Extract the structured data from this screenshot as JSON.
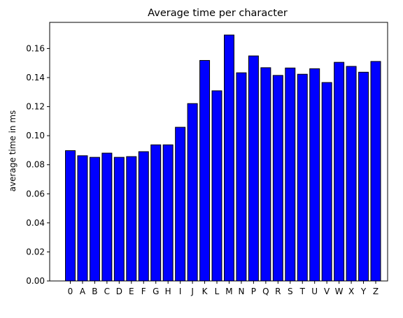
{
  "chart_data": {
    "type": "bar",
    "title": "Average time per character",
    "xlabel": "",
    "ylabel": "average time in ms",
    "categories": [
      "0",
      "A",
      "B",
      "C",
      "D",
      "E",
      "F",
      "G",
      "H",
      "I",
      "J",
      "K",
      "L",
      "M",
      "N",
      "P",
      "Q",
      "R",
      "S",
      "T",
      "U",
      "V",
      "W",
      "X",
      "Y",
      "Z"
    ],
    "values": [
      0.0897,
      0.0862,
      0.0851,
      0.088,
      0.0851,
      0.0856,
      0.089,
      0.0937,
      0.0937,
      0.1058,
      0.1221,
      0.1518,
      0.1309,
      0.1693,
      0.1433,
      0.1549,
      0.1468,
      0.1415,
      0.1466,
      0.1423,
      0.1461,
      0.1366,
      0.1505,
      0.1477,
      0.1437,
      0.1511
    ],
    "ylim": [
      0,
      0.178
    ],
    "yticks": [
      "0.00",
      "0.02",
      "0.04",
      "0.06",
      "0.08",
      "0.10",
      "0.12",
      "0.14",
      "0.16"
    ],
    "grid": false,
    "colors": {
      "bar_fill": "#0000ff",
      "bar_edge": "#000000",
      "axis": "#000000"
    }
  }
}
